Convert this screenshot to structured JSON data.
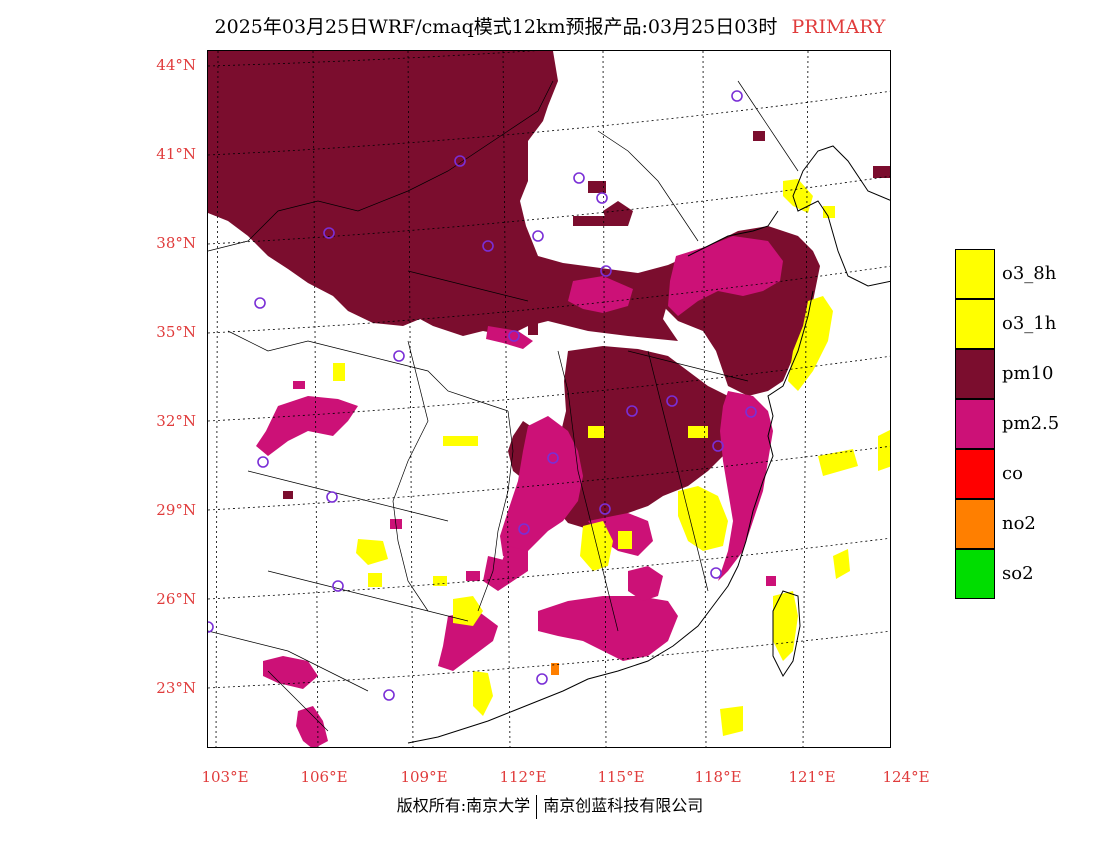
{
  "title": {
    "main": "2025年03月25日WRF/cmaq模式12km预报产品:03月25日03时",
    "tag": "PRIMARY"
  },
  "axes": {
    "lat_labels": [
      "44°N",
      "41°N",
      "38°N",
      "35°N",
      "32°N",
      "29°N",
      "26°N",
      "23°N"
    ],
    "lon_labels": [
      "103°E",
      "106°E",
      "109°E",
      "112°E",
      "115°E",
      "118°E",
      "121°E",
      "124°E"
    ]
  },
  "legend": [
    {
      "label": "o3_8h",
      "color": "#ffff00"
    },
    {
      "label": "o3_1h",
      "color": "#ffff00"
    },
    {
      "label": "pm10",
      "color": "#7b0d2e"
    },
    {
      "label": "pm2.5",
      "color": "#cc1177"
    },
    {
      "label": "co",
      "color": "#ff0000"
    },
    {
      "label": "no2",
      "color": "#ff7f00"
    },
    {
      "label": "so2",
      "color": "#00dd00"
    }
  ],
  "footer": {
    "left": "版权所有:南京大学",
    "right": "南京创蓝科技有限公司"
  },
  "colors": {
    "pm10": "#7b0d2e",
    "pm25": "#cc1177",
    "o3": "#ffff00",
    "no2": "#ff7f00",
    "station": "#7a2fd6",
    "label_red": "#e03c3c"
  }
}
